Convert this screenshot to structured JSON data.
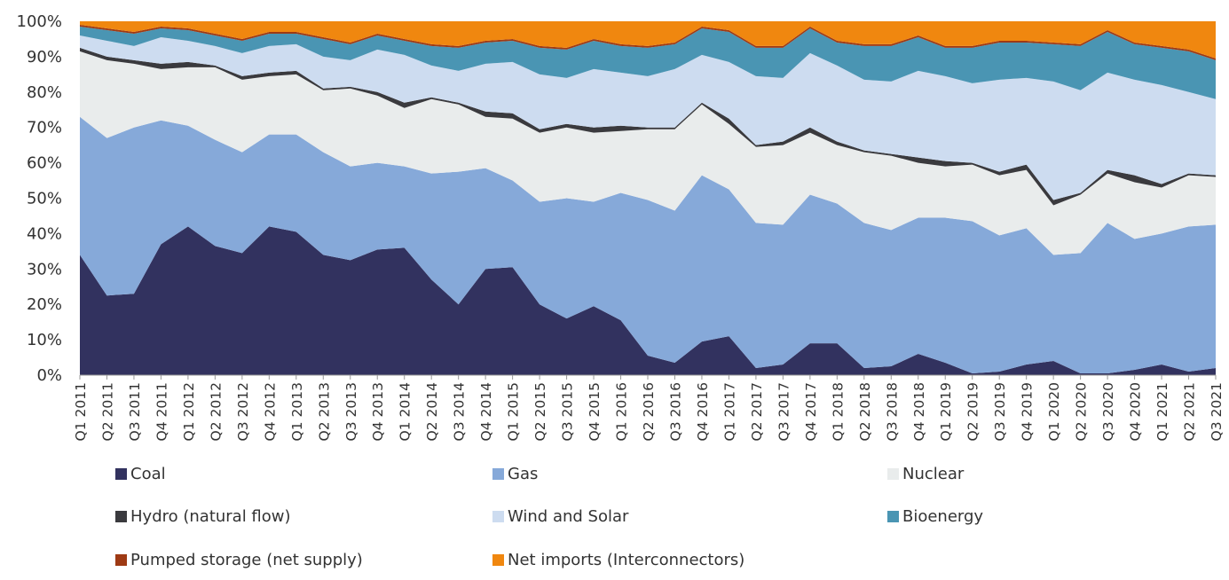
{
  "chart_data": {
    "type": "stacked_area",
    "categories": [
      "Q1 2011",
      "Q2 2011",
      "Q3 2011",
      "Q4 2011",
      "Q1 2012",
      "Q2 2012",
      "Q3 2012",
      "Q4 2012",
      "Q1 2013",
      "Q2 2013",
      "Q3 2013",
      "Q4 2013",
      "Q1 2014",
      "Q2 2014",
      "Q3 2014",
      "Q4 2014",
      "Q1 2015",
      "Q2 2015",
      "Q3 2015",
      "Q4 2015",
      "Q1 2016",
      "Q2 2016",
      "Q3 2016",
      "Q4 2016",
      "Q1 2017",
      "Q2 2017",
      "Q3 2017",
      "Q4 2017",
      "Q1 2018",
      "Q2 2018",
      "Q3 2018",
      "Q4 2018",
      "Q1 2019",
      "Q2 2019",
      "Q3 2019",
      "Q4 2019",
      "Q1 2020",
      "Q2 2020",
      "Q3 2020",
      "Q4 2020",
      "Q1 2021",
      "Q2 2021",
      "Q3 2021"
    ],
    "series": [
      {
        "name": "Coal",
        "color": "#32325f",
        "values": [
          34,
          22.5,
          23,
          37,
          42,
          36.5,
          34.5,
          42,
          40.5,
          34,
          32.5,
          35.5,
          36,
          27,
          20,
          30,
          30.5,
          20,
          16,
          19.5,
          15.5,
          5.5,
          3.5,
          9.5,
          11,
          2,
          3,
          9,
          9,
          2,
          2.5,
          6,
          3.5,
          0.5,
          1,
          3,
          4,
          0.5,
          0.5,
          1.5,
          3,
          1,
          2
        ]
      },
      {
        "name": "Gas",
        "color": "#86a9d9",
        "values": [
          39,
          44.5,
          47,
          35,
          28.5,
          30,
          28.5,
          26,
          27.5,
          29,
          26.5,
          24.5,
          23,
          30,
          37.5,
          28.5,
          24.5,
          29,
          34,
          29.5,
          36,
          44,
          43,
          47,
          41.5,
          41,
          39.5,
          42,
          39.5,
          41,
          38.5,
          38.5,
          41,
          43,
          38.5,
          38.5,
          30,
          34,
          42.5,
          37,
          37,
          41,
          40.5
        ]
      },
      {
        "name": "Nuclear",
        "color": "#e9ecec",
        "values": [
          18.5,
          22,
          18,
          14.5,
          16.5,
          20.5,
          20.5,
          16.5,
          17,
          17.5,
          22,
          19,
          16.5,
          21,
          19,
          14.5,
          17.5,
          19.5,
          20,
          19.5,
          17.5,
          20,
          23,
          20,
          18.5,
          21.5,
          22.5,
          17.5,
          16.5,
          20,
          21,
          15.5,
          14.5,
          16,
          17,
          16.5,
          14,
          16.5,
          14,
          16,
          13,
          14.5,
          13.5
        ]
      },
      {
        "name": "Hydro (natural flow)",
        "color": "#3a3a3e",
        "values": [
          1,
          1,
          1,
          1.5,
          1.5,
          0.5,
          1,
          1,
          1,
          0.5,
          0.5,
          1,
          1.5,
          0.5,
          0.5,
          1.5,
          1.5,
          1,
          1,
          1.5,
          1.5,
          0.5,
          0.5,
          0.5,
          1.5,
          0.5,
          1,
          1.5,
          1,
          0.5,
          0.5,
          1.5,
          1.5,
          0.5,
          1,
          1.5,
          1.5,
          0.5,
          1,
          2,
          1,
          0.5,
          0.5
        ]
      },
      {
        "name": "Wind and Solar",
        "color": "#cddcf0",
        "values": [
          3.5,
          4.5,
          4,
          7.5,
          6,
          5.5,
          6.5,
          7.5,
          7.5,
          9,
          7.5,
          12,
          13.5,
          9,
          9,
          13.5,
          14.5,
          15.5,
          13,
          16.5,
          15,
          14.5,
          16.5,
          13.5,
          16,
          19.5,
          18,
          21,
          21.5,
          20,
          20.5,
          24.5,
          24,
          22.5,
          26,
          24.5,
          33.5,
          29,
          27.5,
          27,
          28,
          23,
          21.5
        ]
      },
      {
        "name": "Bioenergy",
        "color": "#4a95b3",
        "values": [
          2.5,
          3,
          3.5,
          2.5,
          3,
          3,
          3.5,
          3.5,
          3,
          5,
          4.5,
          4,
          4,
          5.5,
          6.5,
          6,
          6,
          7.5,
          8,
          8,
          7.5,
          8,
          7,
          7.5,
          8.5,
          8,
          8.5,
          7,
          6.5,
          9.5,
          10,
          9.5,
          8,
          10,
          10.5,
          10,
          10.5,
          12.5,
          11.5,
          10,
          10.5,
          11.5,
          11
        ]
      },
      {
        "name": "Pumped storage (net supply)",
        "color": "#9e3a14",
        "values": [
          0.5,
          0.5,
          0.5,
          0.5,
          0.5,
          0.5,
          0.5,
          0.5,
          0.5,
          0.5,
          0.5,
          0.5,
          0.5,
          0.5,
          0.5,
          0.5,
          0.5,
          0.5,
          0.5,
          0.5,
          0.5,
          0.5,
          0.5,
          0.5,
          0.5,
          0.5,
          0.5,
          0.5,
          0.5,
          0.5,
          0.5,
          0.5,
          0.5,
          0.5,
          0.5,
          0.5,
          0.5,
          0.5,
          0.5,
          0.5,
          0.5,
          0.5,
          0.5
        ]
      },
      {
        "name": "Net imports (Interconnectors)",
        "color": "#f0870f",
        "values": [
          1,
          2,
          3,
          1.5,
          2,
          3.5,
          5,
          3,
          3,
          4.5,
          6,
          3.5,
          5,
          6.5,
          7,
          5.5,
          5,
          7,
          7.5,
          5,
          6.5,
          7,
          6,
          1.5,
          2.5,
          7,
          7,
          1.5,
          5.5,
          6.5,
          6.5,
          4,
          7,
          7,
          5.5,
          5.5,
          6,
          6.5,
          2.5,
          6,
          7,
          8,
          10.5
        ]
      }
    ],
    "ylim": [
      0,
      100
    ],
    "yticks": [
      {
        "value": 0,
        "label": "0%"
      },
      {
        "value": 10,
        "label": "10%"
      },
      {
        "value": 20,
        "label": "20%"
      },
      {
        "value": 30,
        "label": "30%"
      },
      {
        "value": 40,
        "label": "40%"
      },
      {
        "value": 50,
        "label": "50%"
      },
      {
        "value": 60,
        "label": "60%"
      },
      {
        "value": 70,
        "label": "70%"
      },
      {
        "value": 80,
        "label": "80%"
      },
      {
        "value": 90,
        "label": "90%"
      },
      {
        "value": 100,
        "label": "100%"
      }
    ],
    "legend": "bottom"
  }
}
